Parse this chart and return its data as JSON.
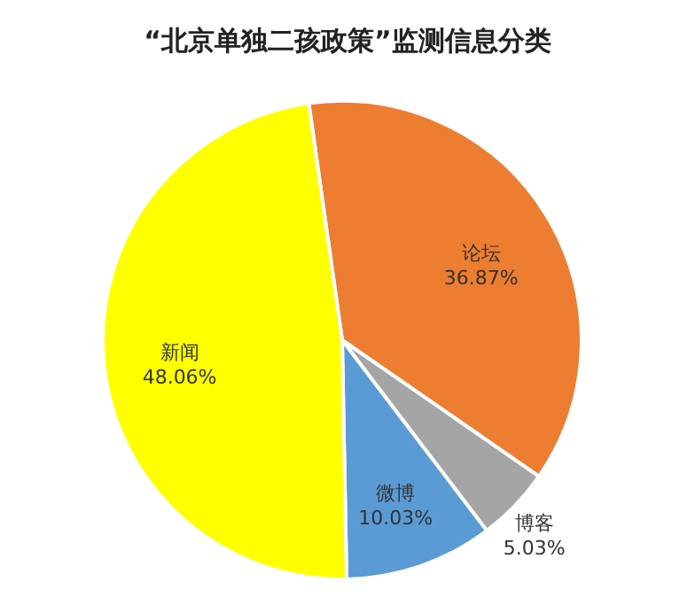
{
  "chart_data": {
    "type": "pie",
    "title": "“北京单独二孩政策”监测信息分类",
    "categories": [
      "论坛",
      "博客",
      "微博",
      "新闻"
    ],
    "values": [
      36.87,
      5.03,
      10.03,
      48.06
    ],
    "value_labels": [
      "36.87%",
      "5.03%",
      "10.03%",
      "48.06%"
    ],
    "colors": [
      "#ed7d31",
      "#a5a5a5",
      "#5b9bd5",
      "#ffff00"
    ],
    "legend": false
  }
}
